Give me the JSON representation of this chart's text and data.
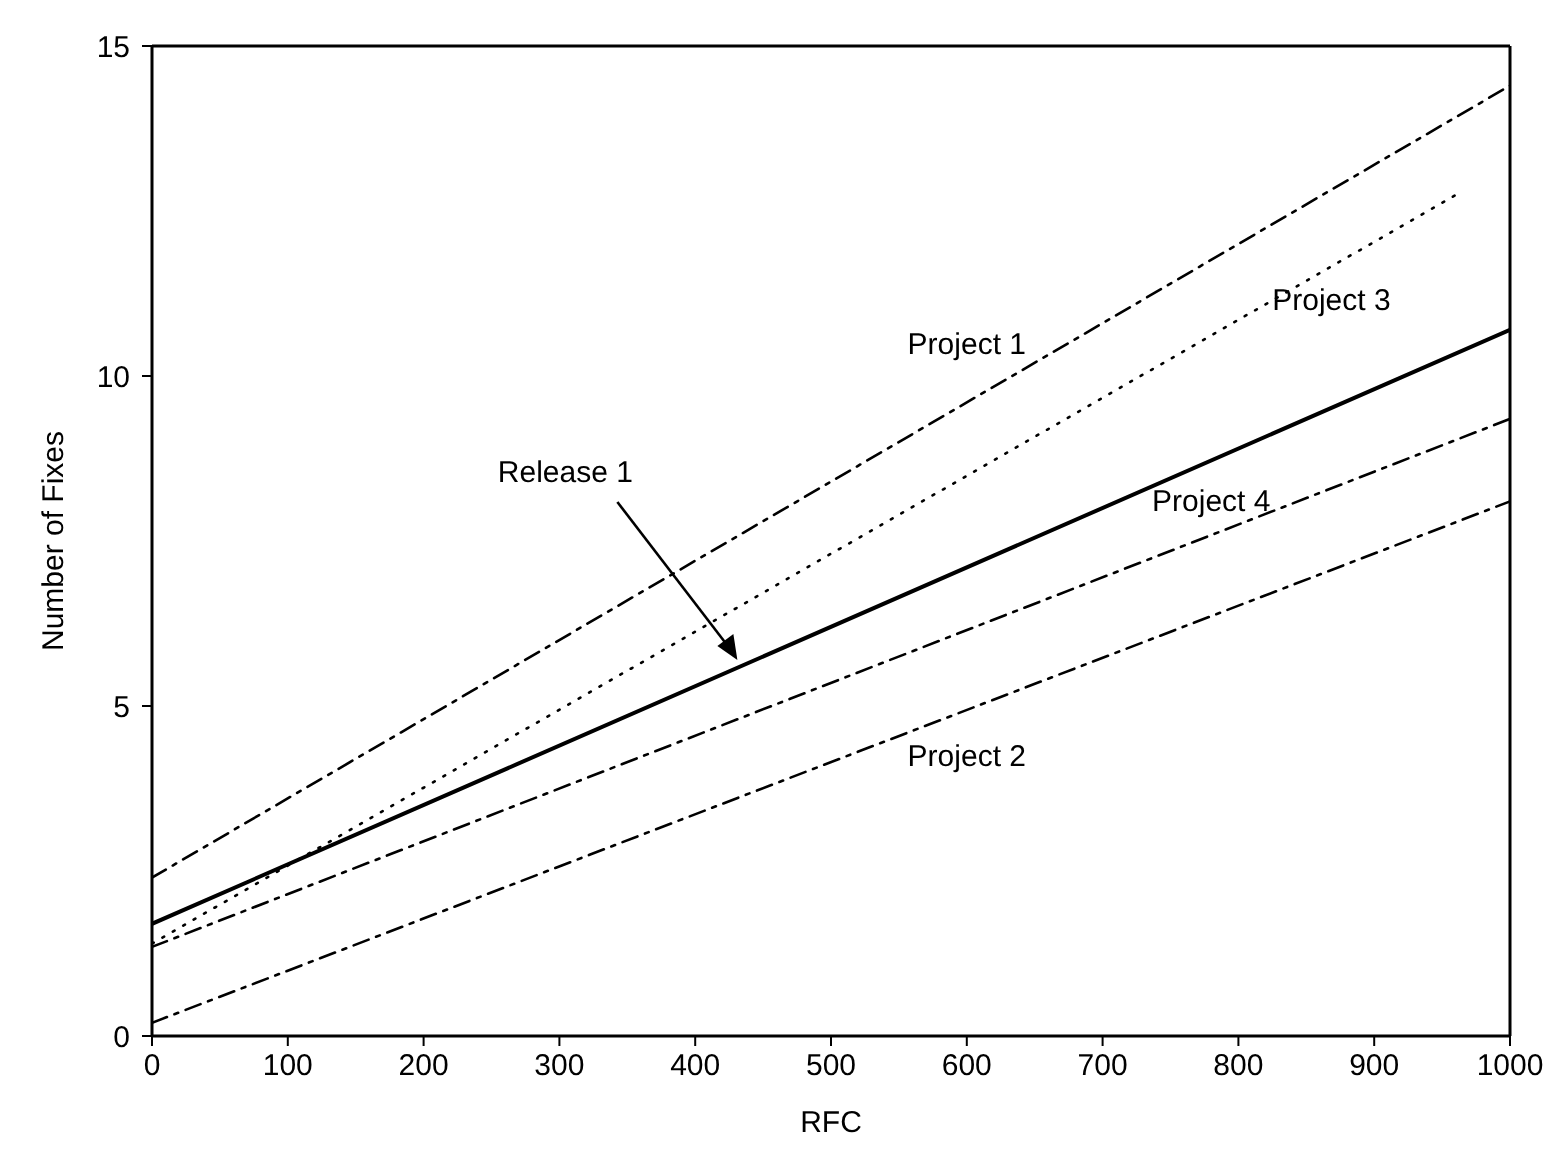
{
  "chart_data": {
    "type": "line",
    "xlabel": "RFC",
    "ylabel": "Number of Fixes",
    "xlim": [
      0,
      1000
    ],
    "xticks": [
      0,
      100,
      200,
      300,
      400,
      500,
      600,
      700,
      800,
      900,
      1000
    ],
    "ylim": [
      0,
      15
    ],
    "yticks": [
      0,
      5,
      10,
      15
    ],
    "grid": false,
    "legend": false,
    "marker": "none",
    "series": [
      {
        "name": "Project 1",
        "color": "#000000",
        "x": [
          0,
          1000
        ],
        "values": [
          2.4,
          14.4
        ],
        "line_style": "dashed"
      },
      {
        "name": "Project 3",
        "color": "#000000",
        "x": [
          0,
          965
        ],
        "values": [
          1.4,
          12.8
        ],
        "line_style": "dotted"
      },
      {
        "color": "#000000",
        "x": [
          0,
          1000
        ],
        "values": [
          1.7,
          10.7
        ],
        "line_style": "solid"
      },
      {
        "name": "Project 4",
        "color": "#000000",
        "x": [
          0,
          1000
        ],
        "values": [
          1.35,
          9.35
        ],
        "line_style": "dashed"
      },
      {
        "name": "Project 2",
        "color": "#000000",
        "x": [
          0,
          1000
        ],
        "values": [
          0.2,
          8.1
        ],
        "line_style": "dashed"
      }
    ],
    "annotations": [
      "Release 1"
    ]
  }
}
